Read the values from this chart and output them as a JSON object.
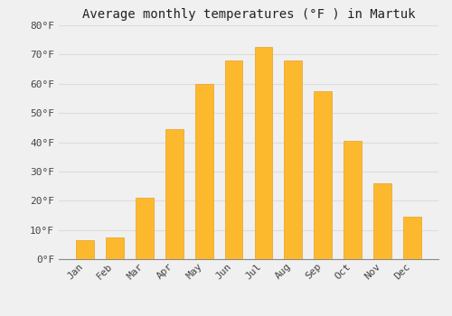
{
  "title": "Average monthly temperatures (°F ) in Martuk",
  "months": [
    "Jan",
    "Feb",
    "Mar",
    "Apr",
    "May",
    "Jun",
    "Jul",
    "Aug",
    "Sep",
    "Oct",
    "Nov",
    "Dec"
  ],
  "values": [
    6.5,
    7.5,
    21,
    44.5,
    60,
    68,
    72.5,
    68,
    57.5,
    40.5,
    26,
    14.5
  ],
  "bar_color": "#FDB92E",
  "bar_edge_color": "#E8A020",
  "background_color": "#F0F0F0",
  "grid_color": "#DDDDDD",
  "ylim": [
    0,
    80
  ],
  "yticks": [
    0,
    10,
    20,
    30,
    40,
    50,
    60,
    70,
    80
  ],
  "ytick_labels": [
    "0°F",
    "10°F",
    "20°F",
    "30°F",
    "40°F",
    "50°F",
    "60°F",
    "70°F",
    "80°F"
  ],
  "title_fontsize": 10,
  "tick_fontsize": 8,
  "font_family": "monospace",
  "bar_width": 0.6
}
